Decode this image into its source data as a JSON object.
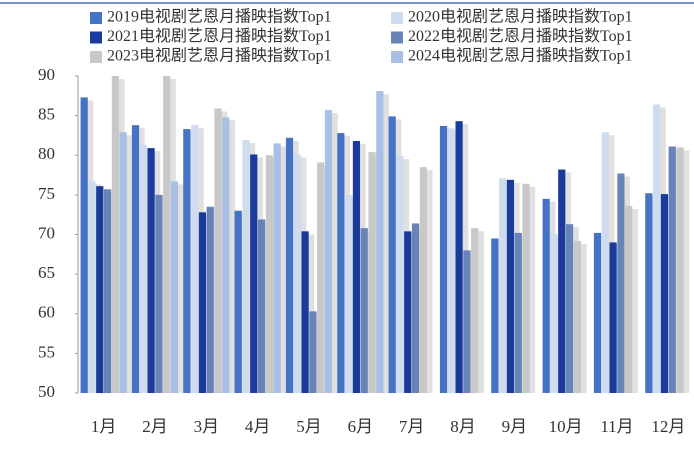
{
  "chart_data": {
    "type": "bar",
    "categories": [
      "1月",
      "2月",
      "3月",
      "4月",
      "5月",
      "6月",
      "7月",
      "8月",
      "9月",
      "10月",
      "11月",
      "12月"
    ],
    "series": [
      {
        "name": "2019电视剧艺恩月播映指数Top1",
        "color": "#4472c4",
        "values": [
          87.3,
          83.8,
          83.3,
          73,
          82.2,
          82.8,
          84.9,
          83.7,
          69.5,
          74.5,
          70.2,
          75.2
        ]
      },
      {
        "name": "2020电视剧艺恩月播映指数Top1",
        "color": "#cfdcf0",
        "values": [
          76.7,
          81.3,
          83.8,
          81.9,
          80.1,
          75,
          79.9,
          83.4,
          77.1,
          70.1,
          82.9,
          86.4
        ]
      },
      {
        "name": "2021电视剧艺恩月播映指数Top1",
        "color": "#1a3a9c",
        "values": [
          76.1,
          80.9,
          72.8,
          80.1,
          70.4,
          81.8,
          70.4,
          84.3,
          76.9,
          78.2,
          69,
          75.1
        ]
      },
      {
        "name": "2022电视剧艺恩月播映指数Top1",
        "color": "#6883b8",
        "values": [
          75.7,
          75,
          73.5,
          71.9,
          60.3,
          70.8,
          71.4,
          68,
          70.2,
          71.3,
          77.7,
          81.1
        ]
      },
      {
        "name": "2023电视剧艺恩月播映指数Top1",
        "color": "#c8c8c8",
        "values": [
          90,
          90,
          85.9,
          80,
          79.1,
          80.4,
          78.5,
          70.8,
          76.4,
          69.2,
          73.6,
          81
        ]
      },
      {
        "name": "2024电视剧艺恩月播映指数Top1",
        "color": "#a9bfe6",
        "values": [
          82.9,
          76.7,
          84.8,
          81.5,
          85.7,
          88.1,
          null,
          null,
          null,
          null,
          null,
          null
        ]
      }
    ],
    "ylim": [
      50,
      90
    ],
    "yticks": [
      50,
      55,
      60,
      65,
      70,
      75,
      80,
      85,
      90
    ],
    "legend": "top"
  }
}
